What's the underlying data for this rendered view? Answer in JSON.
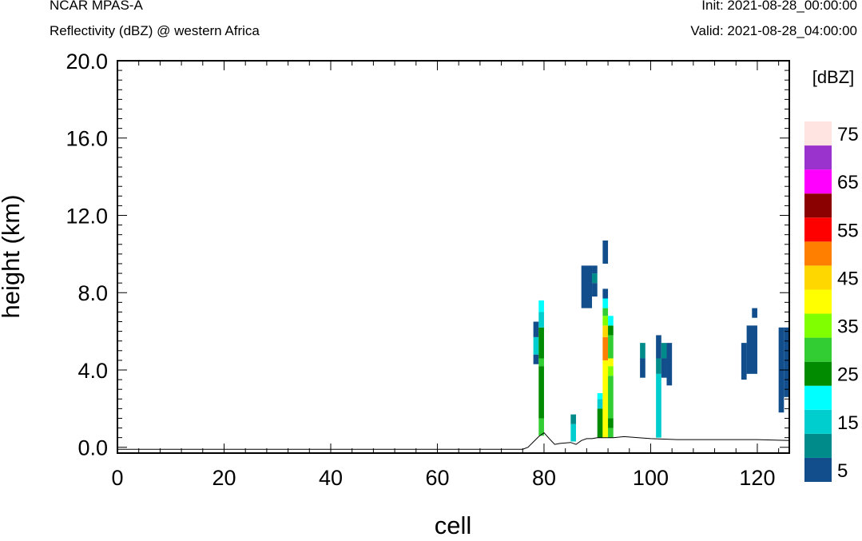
{
  "header": {
    "model": "NCAR MPAS-A",
    "subtitle": "Reflectivity (dBZ) @ western Africa",
    "init": "Init: 2021-08-28_00:00:00",
    "valid": "Valid: 2021-08-28_04:00:00"
  },
  "chart_data": {
    "type": "heatmap",
    "xlabel": "cell",
    "ylabel": "height (km)",
    "xlim": [
      0,
      126
    ],
    "ylim": [
      -0.3,
      20.0
    ],
    "x_ticks": [
      "0",
      "20",
      "40",
      "60",
      "80",
      "100",
      "120"
    ],
    "y_ticks": [
      "0.0",
      "4.0",
      "8.0",
      "12.0",
      "16.0",
      "20.0"
    ],
    "colorbar": {
      "unit_label": "[dBZ]",
      "levels": [
        5,
        10,
        15,
        20,
        25,
        30,
        35,
        40,
        45,
        50,
        55,
        60,
        65,
        70,
        75
      ],
      "tick_labels": [
        "5",
        "15",
        "25",
        "35",
        "45",
        "55",
        "65",
        "75"
      ],
      "colors": [
        "#114e8b",
        "#008b8b",
        "#00cdcd",
        "#00ffff",
        "#008b00",
        "#32cd32",
        "#7fff00",
        "#ffff00",
        "#ffd700",
        "#ff7f00",
        "#ff0000",
        "#8b0000",
        "#ff00ff",
        "#9a32cd",
        "#ffe4e1"
      ]
    },
    "terrain": {
      "x": [
        0,
        76,
        77,
        79,
        80,
        81,
        82,
        83,
        85,
        86,
        87,
        88,
        89,
        90,
        91,
        92,
        93,
        95,
        100,
        105,
        110,
        115,
        120,
        126
      ],
      "y": [
        -0.1,
        -0.1,
        0.0,
        0.55,
        0.75,
        0.45,
        0.15,
        0.2,
        0.25,
        0.15,
        0.35,
        0.45,
        0.45,
        0.5,
        0.5,
        0.5,
        0.5,
        0.55,
        0.45,
        0.4,
        0.4,
        0.4,
        0.4,
        0.35
      ]
    },
    "cells": [
      {
        "x0": 78,
        "x1": 79,
        "segments": [
          [
            4.3,
            4.8,
            5
          ],
          [
            4.8,
            5.7,
            15
          ],
          [
            5.7,
            6.5,
            5
          ]
        ]
      },
      {
        "x0": 79,
        "x1": 80,
        "segments": [
          [
            0.6,
            1.5,
            30
          ],
          [
            1.5,
            4.2,
            25
          ],
          [
            4.2,
            4.6,
            30
          ],
          [
            4.6,
            6.2,
            25
          ],
          [
            6.2,
            7.0,
            15
          ],
          [
            7.0,
            7.6,
            20
          ]
        ]
      },
      {
        "x0": 85,
        "x1": 86,
        "segments": [
          [
            0.3,
            1.2,
            15
          ],
          [
            1.2,
            1.7,
            10
          ]
        ]
      },
      {
        "x0": 87,
        "x1": 89,
        "segments": [
          [
            7.2,
            9.4,
            5
          ]
        ]
      },
      {
        "x0": 89,
        "x1": 90,
        "segments": [
          [
            7.8,
            8.5,
            5
          ],
          [
            8.5,
            9.0,
            10
          ],
          [
            9.0,
            9.4,
            5
          ]
        ]
      },
      {
        "x0": 90,
        "x1": 91,
        "segments": [
          [
            0.5,
            2.0,
            25
          ],
          [
            2.0,
            2.5,
            15
          ],
          [
            2.5,
            2.8,
            20
          ]
        ]
      },
      {
        "x0": 91,
        "x1": 92,
        "segments": [
          [
            0.5,
            4.5,
            40
          ],
          [
            4.5,
            5.7,
            50
          ],
          [
            5.7,
            6.3,
            45
          ],
          [
            6.3,
            6.8,
            35
          ],
          [
            6.8,
            7.2,
            30
          ],
          [
            7.2,
            7.7,
            20
          ],
          [
            7.7,
            8.2,
            5
          ],
          [
            9.5,
            10.7,
            5
          ]
        ]
      },
      {
        "x0": 92,
        "x1": 93,
        "segments": [
          [
            0.5,
            1.0,
            30
          ],
          [
            1.0,
            1.5,
            25
          ],
          [
            1.5,
            3.7,
            30
          ],
          [
            3.7,
            4.2,
            35
          ],
          [
            4.2,
            4.6,
            40
          ],
          [
            4.6,
            5.8,
            30
          ],
          [
            5.8,
            6.3,
            25
          ],
          [
            6.3,
            6.8,
            20
          ]
        ]
      },
      {
        "x0": 98,
        "x1": 99,
        "segments": [
          [
            3.6,
            4.6,
            5
          ],
          [
            4.6,
            5.4,
            10
          ]
        ]
      },
      {
        "x0": 101,
        "x1": 102,
        "segments": [
          [
            0.5,
            3.8,
            15
          ],
          [
            3.8,
            4.6,
            10
          ],
          [
            4.6,
            5.8,
            5
          ]
        ]
      },
      {
        "x0": 102,
        "x1": 103,
        "segments": [
          [
            3.6,
            4.6,
            5
          ],
          [
            4.6,
            5.4,
            10
          ]
        ]
      },
      {
        "x0": 103,
        "x1": 104,
        "segments": [
          [
            3.2,
            5.4,
            5
          ]
        ]
      },
      {
        "x0": 117,
        "x1": 118,
        "segments": [
          [
            3.5,
            5.4,
            5
          ]
        ]
      },
      {
        "x0": 118,
        "x1": 120,
        "segments": [
          [
            3.8,
            6.3,
            5
          ]
        ]
      },
      {
        "x0": 119,
        "x1": 120,
        "segments": [
          [
            6.7,
            7.2,
            5
          ]
        ]
      },
      {
        "x0": 124,
        "x1": 125,
        "segments": [
          [
            1.8,
            6.2,
            5
          ]
        ]
      },
      {
        "x0": 125,
        "x1": 126,
        "segments": [
          [
            2.6,
            6.2,
            5
          ]
        ]
      }
    ]
  }
}
